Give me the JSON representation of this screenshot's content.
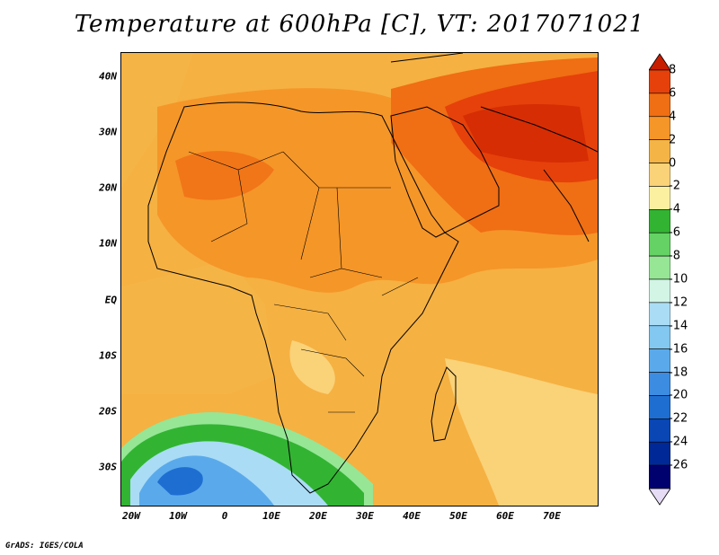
{
  "title": "Temperature at 600hPa [C], VT: 2017071021",
  "map": {
    "lat_labels": [
      "40N",
      "30N",
      "20N",
      "10N",
      "EQ",
      "10S",
      "20S",
      "30S"
    ],
    "lon_labels": [
      "20W",
      "10W",
      "0",
      "10E",
      "20E",
      "30E",
      "40E",
      "50E",
      "60E",
      "70E"
    ]
  },
  "colorbar": {
    "labels": [
      "8",
      "6",
      "4",
      "2",
      "0",
      "-2",
      "-4",
      "-6",
      "-8",
      "-10",
      "-12",
      "-14",
      "-16",
      "-18",
      "-20",
      "-22",
      "-24",
      "-26"
    ],
    "colors": [
      "#c81e00",
      "#e6410a",
      "#f06e14",
      "#f59628",
      "#f5b446",
      "#fad278",
      "#faf0a0",
      "#32b432",
      "#64d264",
      "#96e696",
      "#d2f5e6",
      "#aadcf5",
      "#82c8f0",
      "#5aaaeb",
      "#3c8ce1",
      "#1e6ed2",
      "#0a46b4",
      "#002896",
      "#00006e",
      "#e6dcf5"
    ]
  },
  "credit": "GrADS: IGES/COLA"
}
